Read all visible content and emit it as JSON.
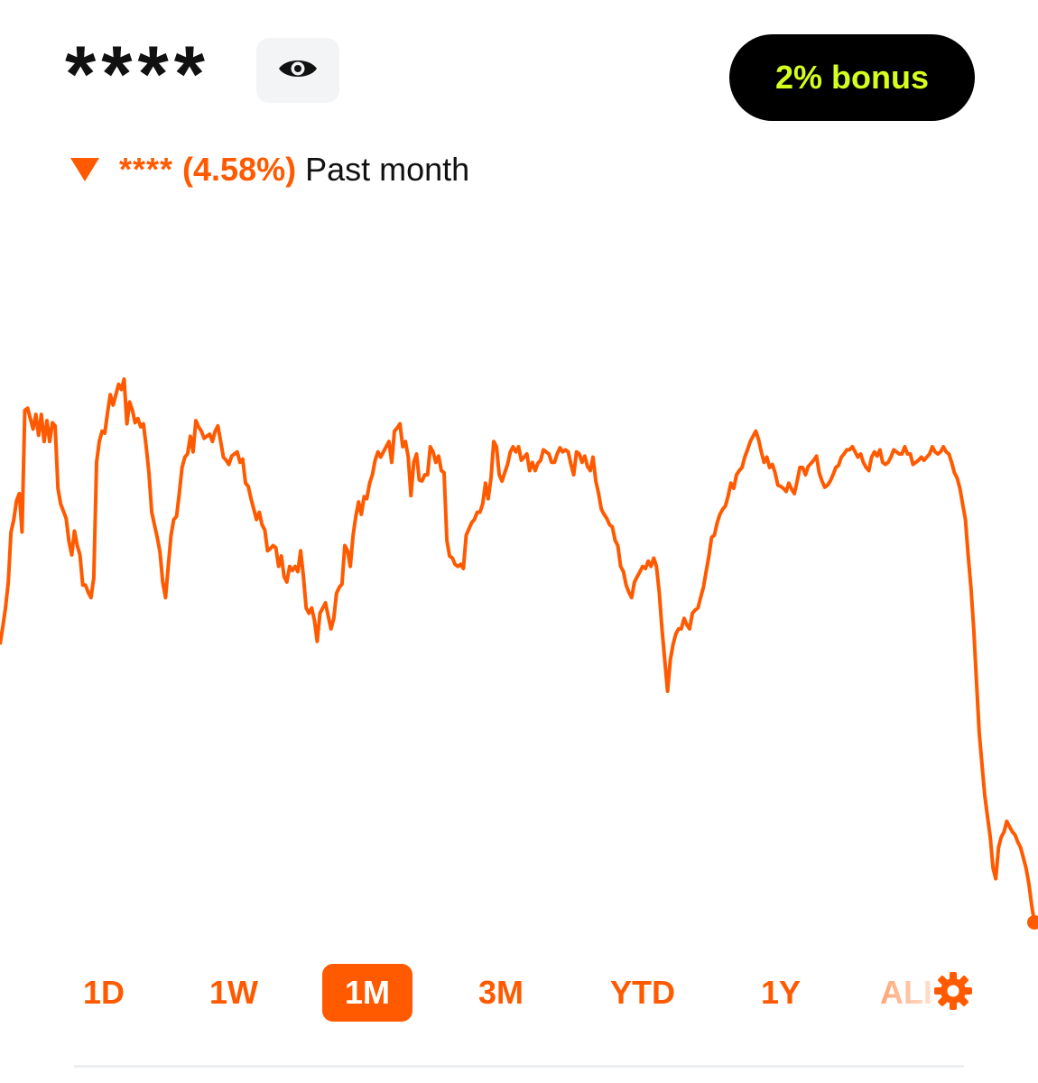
{
  "header": {
    "balance_masked": "****",
    "visibility_icon": "eye-icon",
    "bonus_label": "2% bonus"
  },
  "change": {
    "direction_icon": "triangle-down-icon",
    "amount_masked": "****",
    "percent": "(4.58%)",
    "period": "Past month"
  },
  "colors": {
    "accent": "#ff5a00",
    "bonus_text": "#d4ff1e",
    "bonus_bg": "#000000",
    "eye_bg": "#f2f4f6",
    "text": "#111111"
  },
  "ranges": {
    "items": [
      "1D",
      "1W",
      "1M",
      "3M",
      "YTD",
      "1Y",
      "ALL"
    ],
    "selected": "1M",
    "settings_icon": "gear-icon"
  },
  "chart_data": {
    "type": "line",
    "title": "",
    "xlabel": "",
    "ylabel": "",
    "grid": false,
    "series": [
      {
        "values": [
          395,
          378,
          360,
          335,
          287,
          275,
          257,
          250,
          287,
          170,
          168,
          178,
          188,
          174,
          194,
          174,
          200,
          180,
          200,
          182,
          185,
          245,
          260,
          267,
          274,
          296,
          309,
          286,
          300,
          309,
          338,
          338,
          345,
          350,
          331,
          220,
          200,
          190,
          192,
          172,
          155,
          165,
          155,
          145,
          150,
          140,
          183,
          162,
          170,
          182,
          178,
          186,
          183,
          205,
          230,
          268,
          280,
          292,
          306,
          335,
          350,
          320,
          290,
          275,
          272,
          250,
          225,
          215,
          212,
          195,
          210,
          180,
          186,
          190,
          197,
          195,
          193,
          200,
          190,
          185,
          200,
          215,
          218,
          222,
          214,
          212,
          210,
          220,
          217,
          240,
          243,
          255,
          265,
          275,
          268,
          280,
          285,
          305,
          303,
          300,
          302,
          320,
          310,
          330,
          335,
          320,
          324,
          320,
          325,
          305,
          330,
          360,
          365,
          360,
          372,
          392,
          365,
          360,
          355,
          368,
          380,
          370,
          346,
          340,
          337,
          300,
          305,
          320,
          290,
          272,
          258,
          270,
          253,
          255,
          240,
          232,
          218,
          210,
          215,
          210,
          205,
          200,
          220,
          190,
          187,
          183,
          205,
          200,
          215,
          252,
          220,
          212,
          237,
          238,
          232,
          232,
          205,
          210,
          220,
          214,
          228,
          230,
          295,
          310,
          312,
          318,
          320,
          318,
          322,
          290,
          284,
          278,
          275,
          268,
          268,
          260,
          240,
          255,
          235,
          200,
          205,
          232,
          238,
          230,
          222,
          210,
          205,
          210,
          205,
          218,
          215,
          212,
          228,
          220,
          228,
          221,
          218,
          208,
          210,
          212,
          220,
          220,
          212,
          206,
          210,
          208,
          210,
          222,
          232,
          210,
          212,
          220,
          214,
          224,
          228,
          215,
          238,
          250,
          265,
          270,
          274,
          280,
          282,
          295,
          300,
          320,
          325,
          338,
          345,
          350,
          335,
          330,
          325,
          320,
          322,
          315,
          320,
          312,
          320,
          345,
          380,
          410,
          440,
          410,
          395,
          385,
          380,
          380,
          370,
          376,
          380,
          365,
          362,
          360,
          350,
          340,
          325,
          310,
          292,
          290,
          278,
          270,
          265,
          262,
          252,
          240,
          245,
          232,
          228,
          225,
          215,
          208,
          200,
          195,
          190,
          198,
          210,
          220,
          215,
          225,
          222,
          230,
          242,
          243,
          245,
          248,
          240,
          246,
          250,
          238,
          225,
          225,
          232,
          224,
          221,
          218,
          214,
          230,
          238,
          244,
          242,
          238,
          232,
          225,
          223,
          215,
          212,
          208,
          208,
          205,
          210,
          215,
          212,
          220,
          225,
          228,
          215,
          210,
          214,
          208,
          220,
          222,
          220,
          215,
          208,
          210,
          212,
          212,
          205,
          212,
          212,
          222,
          220,
          218,
          215,
          218,
          215,
          212,
          205,
          210,
          212,
          210,
          205,
          210,
          212,
          220,
          230,
          235,
          245,
          260,
          275,
          310,
          340,
          380,
          430,
          480,
          510,
          540,
          560,
          580,
          610,
          620,
          590,
          580,
          575,
          565,
          570,
          575,
          578,
          585,
          590,
          600,
          610,
          625,
          645,
          662
        ]
      }
    ]
  }
}
